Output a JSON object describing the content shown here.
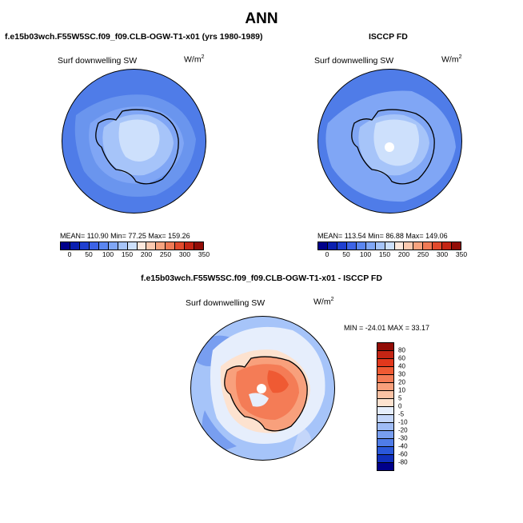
{
  "title": "ANN",
  "panel1": {
    "case": "f.e15b03wch.F55W5SC.f09_f09.CLB-OGW-T1-x01 (yrs 1980-1989)",
    "label": "Surf downwelling SW",
    "units": "W/m",
    "units_sup": "2",
    "stats": "MEAN= 110.90   Min=  77.25   Max= 159.26"
  },
  "panel2": {
    "case": "ISCCP FD",
    "label": "Surf downwelling SW",
    "units": "W/m",
    "units_sup": "2",
    "stats": "MEAN= 113.54   Min=  86.88   Max= 149.06"
  },
  "panel3": {
    "case": "f.e15b03wch.F55W5SC.f09_f09.CLB-OGW-T1-x01 - ISCCP FD",
    "label": "Surf downwelling SW",
    "units": "W/m",
    "units_sup": "2",
    "stats": "MIN = -24.01  MAX =  33.17"
  },
  "colorbar_abs": {
    "colors": [
      "#00008a",
      "#0a1fb0",
      "#1f3fd0",
      "#3d63e6",
      "#5b86f0",
      "#80a6f5",
      "#a6c4f9",
      "#cde0fc",
      "#fde8dd",
      "#fbc9b0",
      "#f7a37f",
      "#f07a55",
      "#e24a2c",
      "#c42514",
      "#920c06"
    ],
    "tick_labels": [
      "0",
      "50",
      "100",
      "150",
      "200",
      "250",
      "300",
      "350"
    ]
  },
  "colorbar_diff": {
    "colors": [
      "#920c06",
      "#c42514",
      "#e2381c",
      "#ef5a33",
      "#f47c56",
      "#f8a07c",
      "#fbc2a4",
      "#fde2cf",
      "#e6eefc",
      "#c4d6fa",
      "#9fbcf6",
      "#789ef0",
      "#4f7ce8",
      "#2a58da",
      "#1030bc",
      "#00008a"
    ],
    "tick_labels": [
      "80",
      "60",
      "40",
      "30",
      "20",
      "10",
      "5",
      "0",
      "-5",
      "-10",
      "-20",
      "-30",
      "-40",
      "-60",
      "-80"
    ]
  },
  "colors": {
    "land_outline": "#000000",
    "pole_hole": "#ffffff"
  }
}
